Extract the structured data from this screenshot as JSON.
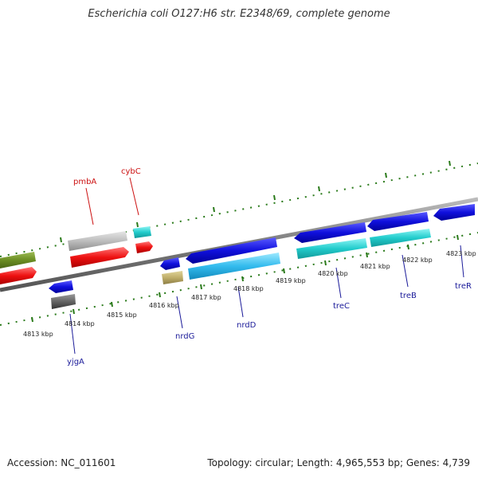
{
  "title": "Escherichia coli O127:H6 str. E2348/69, complete genome",
  "footer": {
    "accession": "Accession: NC_011601",
    "stats": "Topology: circular; Length: 4,965,553 bp; Genes: 4,739"
  },
  "colors": {
    "backbone": "#8a8a8a",
    "ticks": "#2a7a1a",
    "gene_label_top": "#cc1111",
    "gene_label_bottom": "#1a1a99",
    "blue": "#1010dd",
    "cyan": "#22dddd",
    "red": "#ee1111",
    "grey": "#c0c0c0",
    "olive": "#6b8e23",
    "darkgrey": "#666666",
    "khaki": "#c0b070"
  },
  "kbp_labels": [
    "4813 kbp",
    "4814 kbp",
    "4815 kbp",
    "4816 kbp",
    "4817 kbp",
    "4818 kbp",
    "4819 kbp",
    "4820 kbp",
    "4821 kbp",
    "4822 kbp",
    "4823 kbp"
  ],
  "gene_labels": {
    "top": [
      "pmbA",
      "cybC"
    ],
    "bottom": [
      "yjgA",
      "nrdG",
      "nrdD",
      "treC",
      "treB",
      "treR"
    ]
  }
}
